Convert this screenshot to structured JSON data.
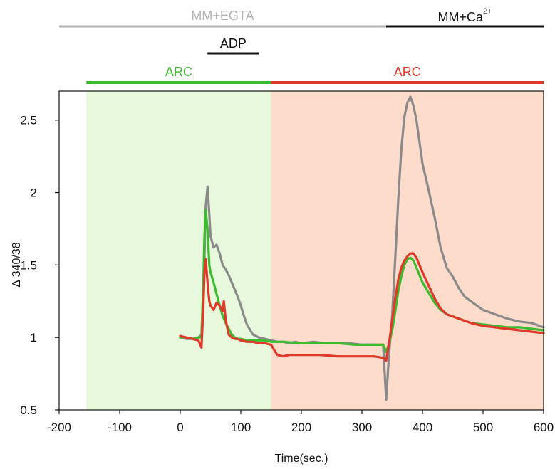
{
  "chart_data": {
    "type": "line",
    "xlabel": "Time(sec.)",
    "ylabel": "Δ 340/38",
    "xlim": [
      -200,
      600
    ],
    "ylim": [
      0.5,
      2.7
    ],
    "x_ticks": [
      -200,
      -100,
      0,
      100,
      200,
      300,
      400,
      500,
      600
    ],
    "y_ticks": [
      0.5,
      1,
      1.5,
      2,
      2.5
    ],
    "y_tick_labels": [
      "0.5",
      "1",
      "1.5",
      "2",
      "2.5"
    ],
    "grid": false,
    "legend": "none",
    "shaded_regions": [
      {
        "x": [
          -155,
          150
        ],
        "color": "#e8f8dc"
      },
      {
        "x": [
          150,
          600
        ],
        "color": "#fddccb"
      }
    ],
    "annotations": {
      "egta": {
        "label": "MM+EGTA",
        "x": [
          -200,
          340
        ],
        "color": "#b2b2b2"
      },
      "calcium": {
        "label": "MM+Ca",
        "superscript": "2+",
        "x": [
          340,
          600
        ],
        "color": "#111111"
      },
      "adp": {
        "label": "ADP",
        "x": [
          45,
          130
        ],
        "color": "#111111"
      },
      "arc_green": {
        "label": "ARC",
        "x": [
          -155,
          150
        ],
        "color": "#3dbb2f"
      },
      "arc_red": {
        "label": "ARC",
        "x": [
          150,
          600
        ],
        "color": "#e0382a"
      }
    },
    "series": [
      {
        "color": "#8a8a8a",
        "x": [
          0,
          10,
          20,
          30,
          35,
          40,
          42,
          45,
          48,
          50,
          55,
          60,
          65,
          70,
          75,
          80,
          85,
          90,
          95,
          100,
          105,
          110,
          120,
          130,
          140,
          150,
          160,
          170,
          180,
          190,
          200,
          220,
          240,
          260,
          280,
          300,
          320,
          335,
          340,
          345,
          350,
          355,
          360,
          365,
          370,
          375,
          380,
          385,
          390,
          395,
          400,
          410,
          420,
          430,
          440,
          450,
          460,
          470,
          480,
          490,
          500,
          520,
          540,
          560,
          580,
          600
        ],
        "y": [
          1.0,
          0.99,
          0.99,
          1.0,
          1.02,
          1.55,
          1.9,
          2.04,
          1.85,
          1.7,
          1.62,
          1.64,
          1.58,
          1.5,
          1.47,
          1.43,
          1.38,
          1.33,
          1.28,
          1.22,
          1.15,
          1.09,
          1.02,
          1.0,
          0.99,
          0.98,
          0.97,
          0.97,
          0.96,
          0.97,
          0.96,
          0.97,
          0.96,
          0.96,
          0.96,
          0.95,
          0.95,
          0.95,
          0.57,
          0.9,
          1.15,
          1.55,
          1.95,
          2.3,
          2.52,
          2.62,
          2.66,
          2.6,
          2.5,
          2.35,
          2.2,
          2.02,
          1.83,
          1.62,
          1.48,
          1.42,
          1.34,
          1.28,
          1.25,
          1.22,
          1.19,
          1.16,
          1.13,
          1.11,
          1.1,
          1.07
        ]
      },
      {
        "color": "#3dbb2f",
        "x": [
          0,
          10,
          20,
          30,
          35,
          38,
          40,
          42,
          45,
          48,
          50,
          55,
          60,
          65,
          70,
          75,
          80,
          85,
          90,
          95,
          100,
          110,
          120,
          130,
          140,
          150,
          170,
          200,
          230,
          260,
          290,
          320,
          335,
          340,
          345,
          350,
          355,
          360,
          365,
          370,
          375,
          380,
          385,
          390,
          395,
          400,
          410,
          420,
          430,
          440,
          460,
          480,
          500,
          520,
          540,
          560,
          580,
          600
        ],
        "y": [
          1.0,
          1.0,
          0.99,
          1.0,
          1.0,
          1.35,
          1.7,
          1.88,
          1.75,
          1.5,
          1.45,
          1.38,
          1.3,
          1.22,
          1.15,
          1.1,
          1.06,
          1.02,
          1.0,
          0.99,
          0.99,
          0.98,
          0.98,
          0.98,
          0.98,
          0.97,
          0.97,
          0.96,
          0.96,
          0.96,
          0.95,
          0.95,
          0.95,
          0.9,
          0.96,
          1.05,
          1.18,
          1.32,
          1.42,
          1.5,
          1.54,
          1.55,
          1.53,
          1.48,
          1.43,
          1.38,
          1.31,
          1.24,
          1.19,
          1.16,
          1.13,
          1.1,
          1.09,
          1.08,
          1.07,
          1.07,
          1.06,
          1.05
        ]
      },
      {
        "color": "#e0382a",
        "x": [
          0,
          10,
          20,
          30,
          35,
          38,
          40,
          42,
          45,
          48,
          50,
          55,
          60,
          65,
          70,
          72,
          75,
          80,
          85,
          90,
          95,
          100,
          110,
          120,
          130,
          140,
          150,
          160,
          170,
          180,
          200,
          230,
          260,
          290,
          320,
          335,
          340,
          345,
          350,
          355,
          360,
          365,
          370,
          375,
          380,
          385,
          390,
          395,
          400,
          410,
          420,
          430,
          440,
          460,
          480,
          500,
          520,
          540,
          560,
          580,
          600
        ],
        "y": [
          1.01,
          1.0,
          0.99,
          0.98,
          0.93,
          1.2,
          1.45,
          1.54,
          1.38,
          1.25,
          1.22,
          1.19,
          1.24,
          1.22,
          1.18,
          1.25,
          1.12,
          1.02,
          1.0,
          0.99,
          0.99,
          0.98,
          0.97,
          0.97,
          0.96,
          0.96,
          0.95,
          0.88,
          0.87,
          0.88,
          0.88,
          0.88,
          0.87,
          0.87,
          0.87,
          0.86,
          0.84,
          0.97,
          1.12,
          1.27,
          1.4,
          1.48,
          1.53,
          1.56,
          1.58,
          1.58,
          1.55,
          1.5,
          1.45,
          1.36,
          1.27,
          1.2,
          1.16,
          1.13,
          1.1,
          1.08,
          1.07,
          1.06,
          1.05,
          1.04,
          1.03
        ]
      }
    ]
  }
}
